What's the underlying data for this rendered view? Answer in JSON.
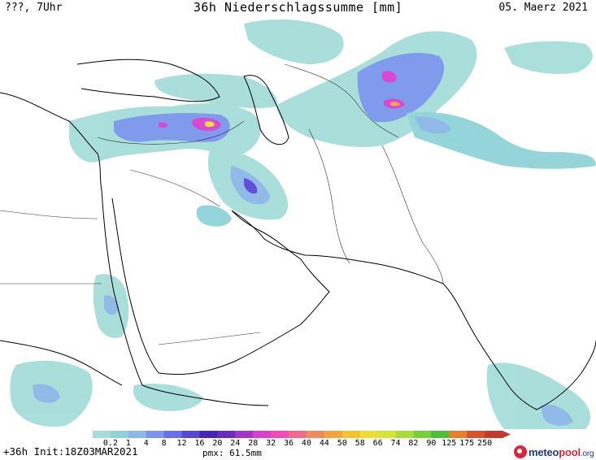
{
  "header": {
    "left": "???, 7Uhr",
    "title": "36h Niederschlagssumme [mm]",
    "date": "05. Maerz 2021"
  },
  "footer": {
    "run": "+36h Init:18Z03MAR2021",
    "pmx": "pmx: 61.5mm"
  },
  "logo": {
    "part1": "meteo",
    "part2": "pool",
    "part3": ".org"
  },
  "legend": {
    "labels": [
      "0.2",
      "1",
      "4",
      "8",
      "12",
      "16",
      "20",
      "24",
      "28",
      "32",
      "36",
      "40",
      "44",
      "50",
      "58",
      "66",
      "74",
      "82",
      "90",
      "125",
      "175",
      "250"
    ],
    "colors": [
      "#a6ddda",
      "#8fd3d7",
      "#8db7e8",
      "#7a96ec",
      "#6872e8",
      "#5648d6",
      "#4527b8",
      "#6b2ac0",
      "#a335c9",
      "#d93fd0",
      "#f24bb4",
      "#f06a8a",
      "#ef8a5c",
      "#f2a53d",
      "#f3c234",
      "#eedd36",
      "#d6e43a",
      "#a8dc3c",
      "#77cf3c",
      "#4fbf3a",
      "#e97f2a",
      "#d8522c",
      "#c43a2c"
    ]
  }
}
